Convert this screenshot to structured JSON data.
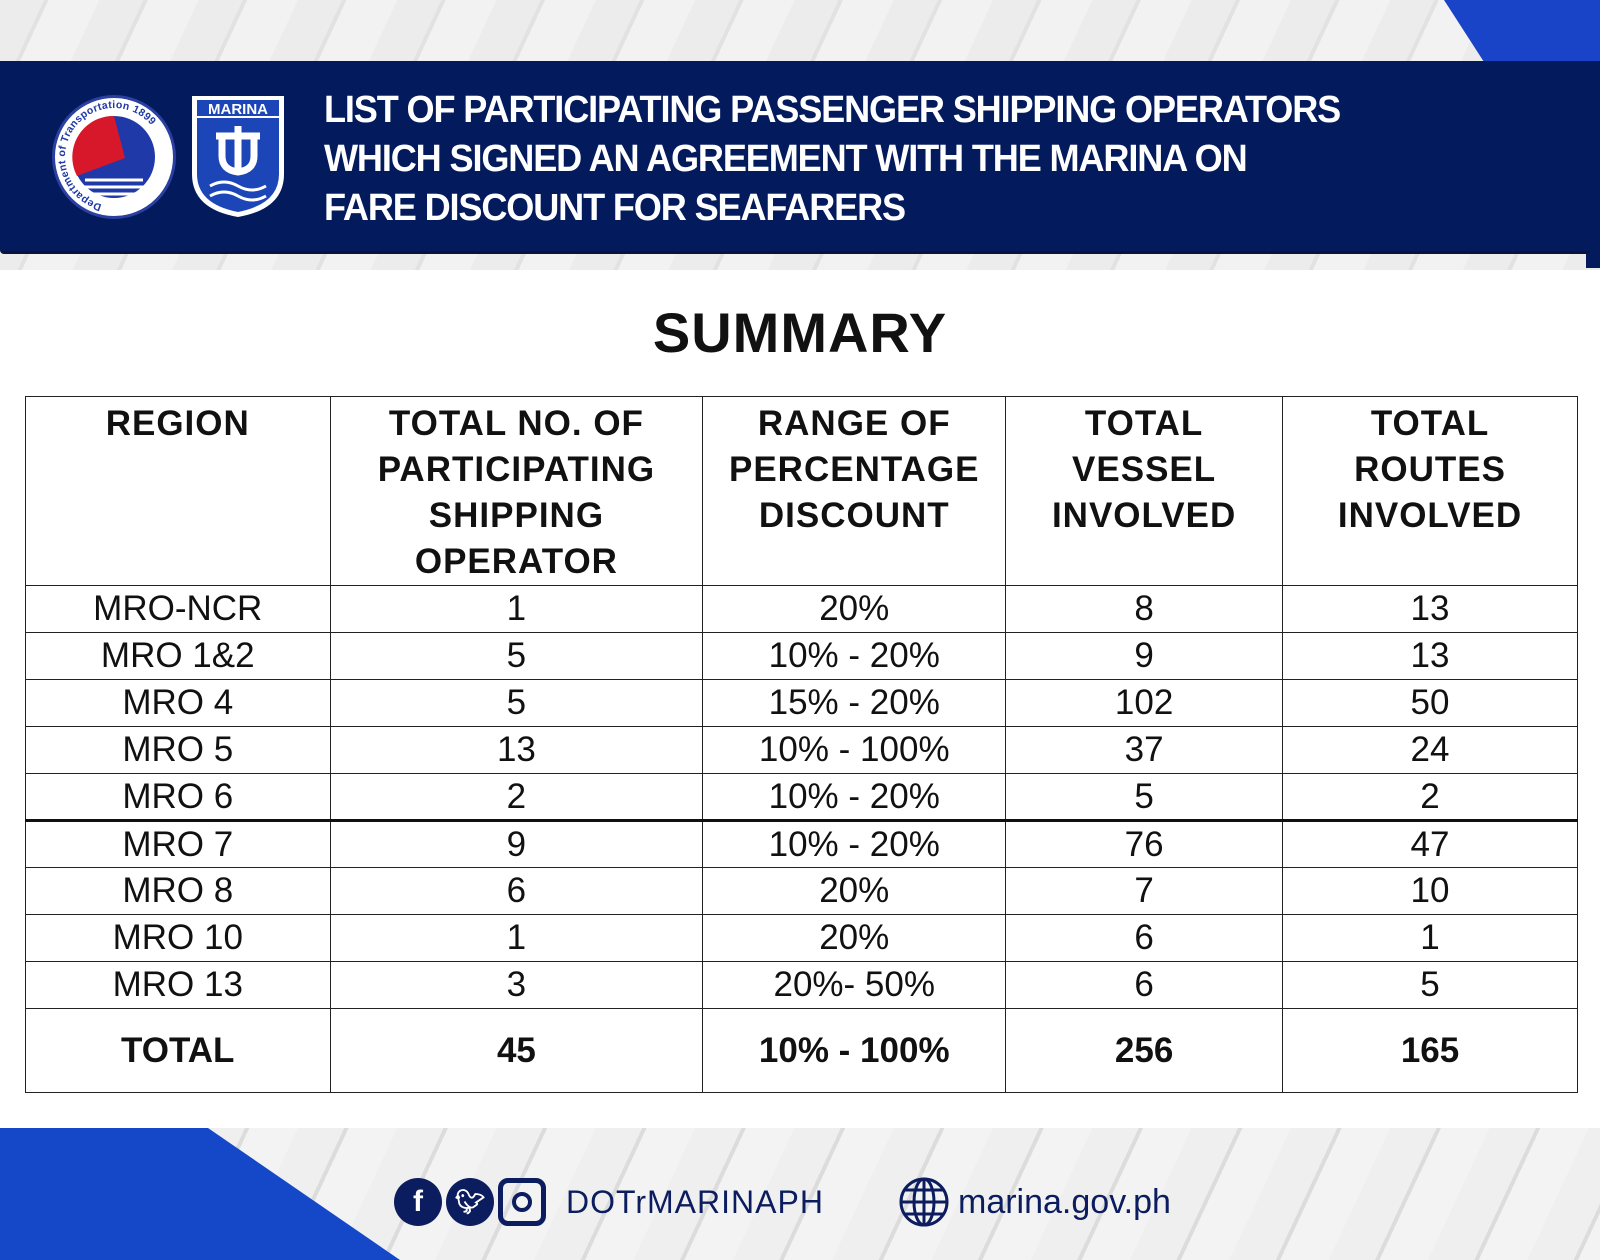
{
  "header": {
    "title_lines": [
      "LIST OF PARTICIPATING PASSENGER SHIPPING OPERATORS",
      "WHICH SIGNED AN AGREEMENT WITH THE MARINA ON",
      "FARE DISCOUNT FOR SEAFARERS"
    ],
    "logo1_text": "Department of Transportation 1899",
    "logo2_text": "MARINA"
  },
  "summary_title": "SUMMARY",
  "table": {
    "headers": [
      "REGION",
      "TOTAL NO. OF PARTICIPATING SHIPPING OPERATOR",
      "RANGE OF PERCENTAGE DISCOUNT",
      "TOTAL VESSEL INVOLVED",
      "TOTAL ROUTES INVOLVED"
    ],
    "rows": [
      [
        "MRO-NCR",
        "1",
        "20%",
        "8",
        "13"
      ],
      [
        "MRO 1&2",
        "5",
        "10% - 20%",
        "9",
        "13"
      ],
      [
        "MRO 4",
        "5",
        "15% - 20%",
        "102",
        "50"
      ],
      [
        "MRO 5",
        "13",
        "10% - 100%",
        "37",
        "24"
      ],
      [
        "MRO 6",
        "2",
        "10% - 20%",
        "5",
        "2"
      ],
      [
        "MRO 7",
        "9",
        "10% - 20%",
        "76",
        "47"
      ],
      [
        "MRO 8",
        "6",
        "20%",
        "7",
        "10"
      ],
      [
        "MRO 10",
        "1",
        "20%",
        "6",
        "1"
      ],
      [
        "MRO 13",
        "3",
        "20%- 50%",
        "6",
        "5"
      ]
    ],
    "total": [
      "TOTAL",
      "45",
      "10% - 100%",
      "256",
      "165"
    ]
  },
  "footer": {
    "social_handle": "DOTrMARINAPH",
    "website": "marina.gov.ph",
    "icons": [
      "facebook-icon",
      "twitter-icon",
      "instagram-icon",
      "globe-icon"
    ]
  },
  "colors": {
    "navy": "#031a5c",
    "blue": "#1448c8",
    "red": "#d7182a"
  }
}
